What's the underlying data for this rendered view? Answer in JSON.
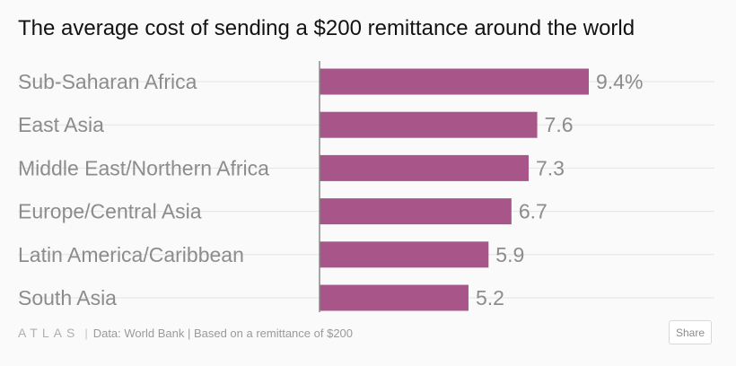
{
  "chart_data": {
    "type": "bar",
    "orientation": "horizontal",
    "title": "The average cost of sending a $200 remittance around the world",
    "categories": [
      "Sub-Saharan Africa",
      "East Asia",
      "Middle East/Northern Africa",
      "Europe/Central Asia",
      "Latin America/Caribbean",
      "South Asia"
    ],
    "values": [
      9.4,
      7.6,
      7.3,
      6.7,
      5.9,
      5.2
    ],
    "value_labels": [
      "9.4%",
      "7.6",
      "7.3",
      "6.7",
      "5.9",
      "5.2"
    ],
    "bar_color": "#a8568a",
    "xlim": [
      0,
      9.4
    ],
    "grid": true
  },
  "footer": {
    "logo": "ATLAS",
    "separator": "|",
    "source": "Data:  World Bank | Based on a remittance of $200",
    "share_label": "Share"
  }
}
